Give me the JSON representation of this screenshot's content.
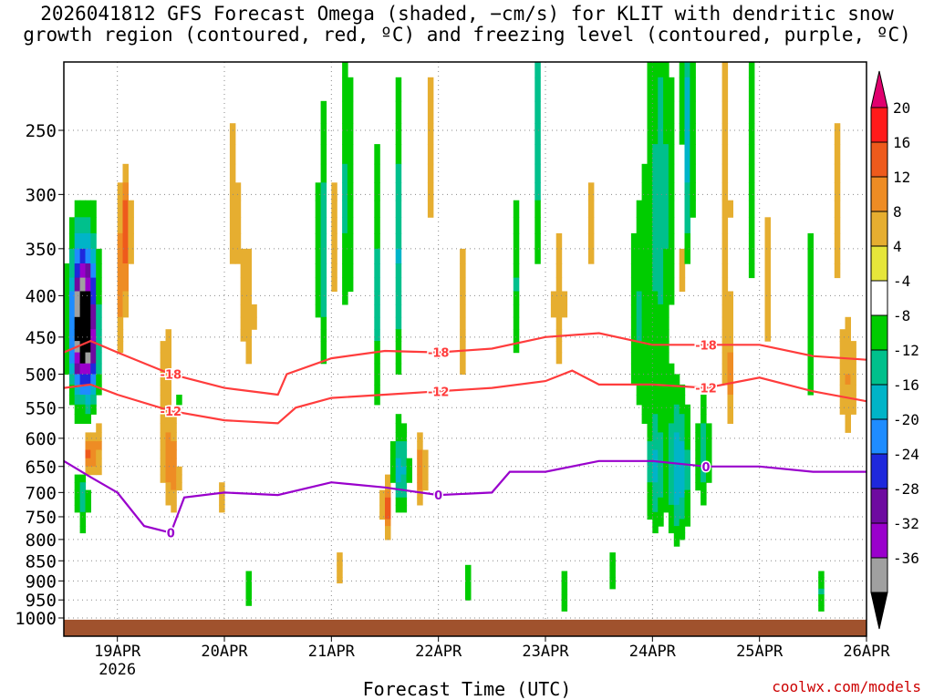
{
  "chart_data": {
    "type": "heatmap",
    "title": "2026041812 GFS Forecast Omega (shaded, −cm/s) for KLIT with dendritic snow\ngrowth region (contoured, red, ºC) and freezing level (contoured, purple, ºC)",
    "xlabel": "Forecast Time (UTC)",
    "ylabel": "",
    "credit": "coolwx.com/models",
    "x_ticks": [
      "19APR",
      "20APR",
      "21APR",
      "22APR",
      "23APR",
      "24APR",
      "25APR",
      "26APR"
    ],
    "x_year": "2026",
    "y_ticks": [
      250,
      300,
      350,
      400,
      450,
      500,
      550,
      600,
      650,
      700,
      750,
      800,
      850,
      900,
      950,
      1000
    ],
    "y_axis": "pressure (hPa), inverted",
    "ylim": [
      1000,
      200
    ],
    "xlim": [
      "2026-04-18T12:00Z",
      "2026-04-26T00:00Z"
    ],
    "grid": true,
    "colorbar": {
      "labels": [
        20,
        16,
        12,
        8,
        4,
        -4,
        -8,
        -12,
        -16,
        -20,
        -24,
        -28,
        -32,
        -36
      ],
      "colors": [
        "#ff1a1a",
        "#ee5a1c",
        "#ee8c24",
        "#e6ae30",
        "#e6e63a",
        "#ffffff",
        "#00cc00",
        "#00c08c",
        "#00b4c8",
        "#1e8cff",
        "#1e28dc",
        "#6e0aa0",
        "#9a00cc",
        "#a0a0a0",
        "#000000"
      ],
      "top_extend_color": "#e0006e",
      "bottom_extend_color": "#000000"
    },
    "contour_series": [
      {
        "label": "-18",
        "color": "#ff3c3c",
        "points": [
          [
            "2026-04-18T12:00Z",
            470
          ],
          [
            "2026-04-18T18:00Z",
            455
          ],
          [
            "2026-04-19T00:00Z",
            470
          ],
          [
            "2026-04-19T12:00Z",
            500
          ],
          [
            "2026-04-20T00:00Z",
            520
          ],
          [
            "2026-04-20T12:00Z",
            530
          ],
          [
            "2026-04-20T14:00Z",
            500
          ],
          [
            "2026-04-21T00:00Z",
            478
          ],
          [
            "2026-04-21T12:00Z",
            468
          ],
          [
            "2026-04-22T00:00Z",
            470
          ],
          [
            "2026-04-22T12:00Z",
            465
          ],
          [
            "2026-04-23T00:00Z",
            450
          ],
          [
            "2026-04-23T12:00Z",
            445
          ],
          [
            "2026-04-24T00:00Z",
            460
          ],
          [
            "2026-04-24T12:00Z",
            460
          ],
          [
            "2026-04-25T00:00Z",
            460
          ],
          [
            "2026-04-25T12:00Z",
            475
          ],
          [
            "2026-04-26T00:00Z",
            480
          ]
        ]
      },
      {
        "label": "-12",
        "color": "#ff3c3c",
        "points": [
          [
            "2026-04-18T12:00Z",
            520
          ],
          [
            "2026-04-18T18:00Z",
            515
          ],
          [
            "2026-04-19T00:00Z",
            530
          ],
          [
            "2026-04-19T12:00Z",
            555
          ],
          [
            "2026-04-20T00:00Z",
            570
          ],
          [
            "2026-04-20T12:00Z",
            575
          ],
          [
            "2026-04-20T16:00Z",
            550
          ],
          [
            "2026-04-21T00:00Z",
            535
          ],
          [
            "2026-04-21T12:00Z",
            530
          ],
          [
            "2026-04-22T00:00Z",
            525
          ],
          [
            "2026-04-22T12:00Z",
            520
          ],
          [
            "2026-04-23T00:00Z",
            510
          ],
          [
            "2026-04-23T06:00Z",
            495
          ],
          [
            "2026-04-23T12:00Z",
            515
          ],
          [
            "2026-04-24T00:00Z",
            515
          ],
          [
            "2026-04-24T12:00Z",
            520
          ],
          [
            "2026-04-25T00:00Z",
            505
          ],
          [
            "2026-04-25T12:00Z",
            525
          ],
          [
            "2026-04-26T00:00Z",
            540
          ]
        ]
      },
      {
        "label": "0",
        "color": "#9900cc",
        "points": [
          [
            "2026-04-18T12:00Z",
            640
          ],
          [
            "2026-04-18T18:00Z",
            670
          ],
          [
            "2026-04-19T00:00Z",
            700
          ],
          [
            "2026-04-19T06:00Z",
            770
          ],
          [
            "2026-04-19T12:00Z",
            785
          ],
          [
            "2026-04-19T15:00Z",
            710
          ],
          [
            "2026-04-20T00:00Z",
            700
          ],
          [
            "2026-04-20T12:00Z",
            705
          ],
          [
            "2026-04-21T00:00Z",
            680
          ],
          [
            "2026-04-21T12:00Z",
            690
          ],
          [
            "2026-04-22T00:00Z",
            705
          ],
          [
            "2026-04-22T12:00Z",
            700
          ],
          [
            "2026-04-22T16:00Z",
            660
          ],
          [
            "2026-04-23T00:00Z",
            660
          ],
          [
            "2026-04-23T12:00Z",
            640
          ],
          [
            "2026-04-24T00:00Z",
            640
          ],
          [
            "2026-04-24T12:00Z",
            650
          ],
          [
            "2026-04-25T00:00Z",
            650
          ],
          [
            "2026-04-25T12:00Z",
            660
          ],
          [
            "2026-04-26T00:00Z",
            660
          ]
        ]
      }
    ],
    "surface_fill_color": "#a0522d"
  }
}
